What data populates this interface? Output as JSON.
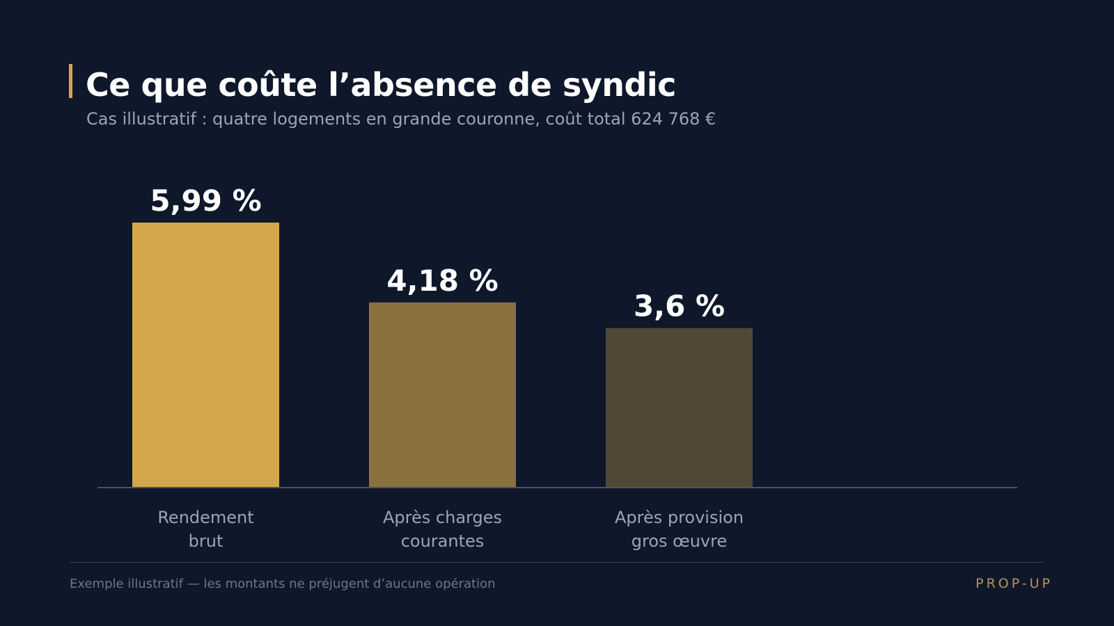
{
  "header": {
    "title": "Ce que coûte l’absence de syndic",
    "subtitle": "Cas illustratif : quatre logements en grande couronne, coût total 624 768 €"
  },
  "chart_data": {
    "type": "bar",
    "title": "Ce que coûte l’absence de syndic",
    "subtitle": "Cas illustratif : quatre logements en grande couronne, coût total 624 768 €",
    "xlabel": "",
    "ylabel": "",
    "categories": [
      [
        "Rendement",
        "brut"
      ],
      [
        "Après charges",
        "courantes"
      ],
      [
        "Après provision",
        "gros œuvre"
      ]
    ],
    "values": [
      5.99,
      4.18,
      3.6
    ],
    "data_labels": [
      "5,99 %",
      "4,18 %",
      "3,6 %"
    ],
    "unit": "%",
    "ylim": [
      0,
      6
    ],
    "grid": false,
    "legend": "none",
    "colors": [
      "#d4a84a",
      "#8a7240",
      "#524836"
    ]
  },
  "footer": {
    "note": "Exemple illustratif — les montants ne préjugent d’aucune opération",
    "brand": "PROP-UP"
  },
  "theme": {
    "background": "#0f182a",
    "accent": "#d4a84a",
    "axis": "#4a5466",
    "label_color": "#9aa5b8",
    "value_color": "#ffffff"
  }
}
